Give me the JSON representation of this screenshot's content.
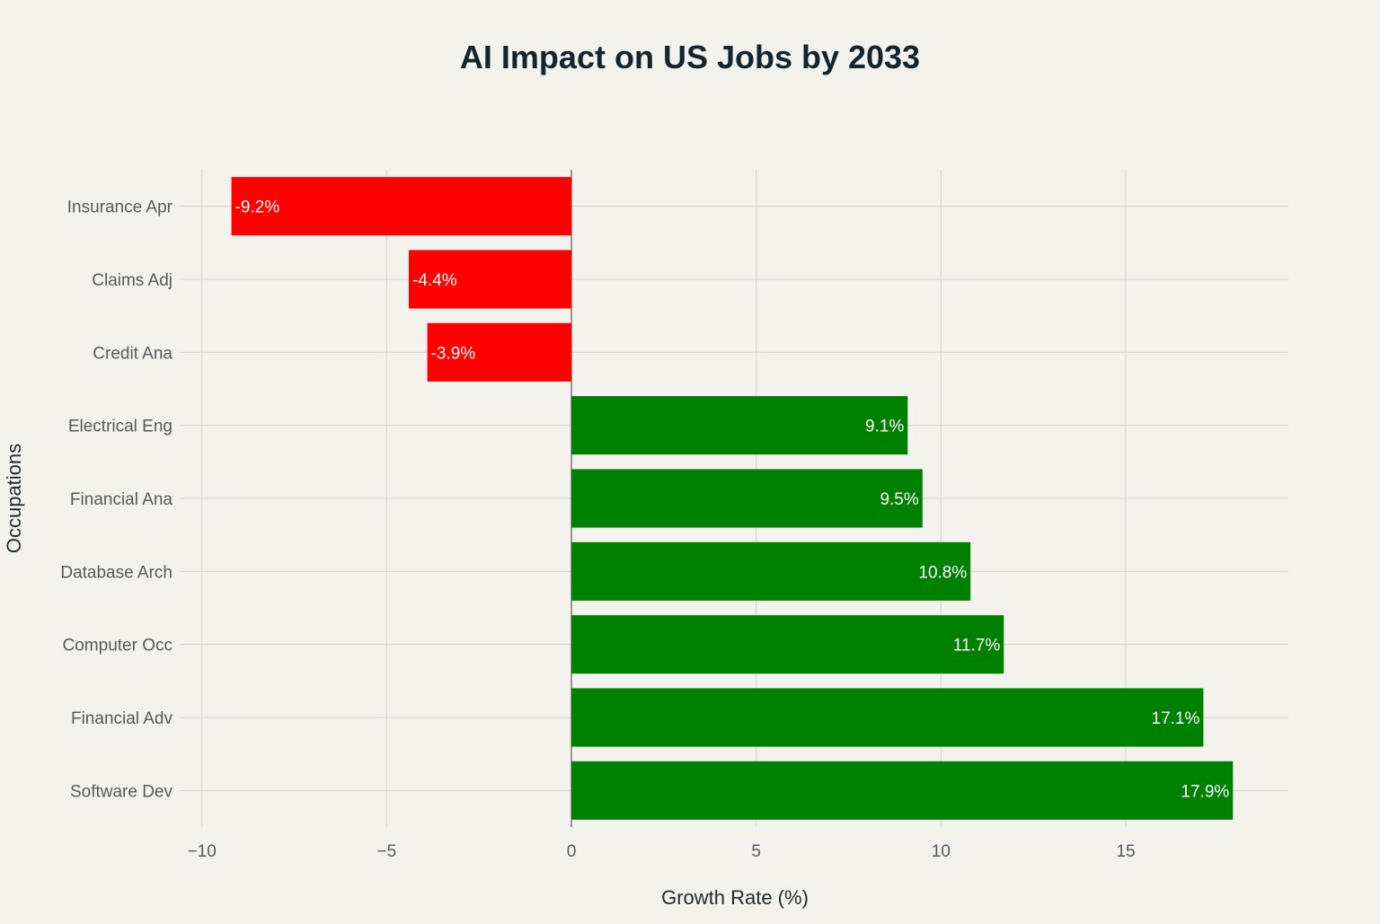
{
  "chart_data": {
    "type": "bar",
    "orientation": "horizontal",
    "title": "AI Impact on US Jobs by 2033",
    "xlabel": "Growth Rate (%)",
    "ylabel": "Occupations",
    "categories": [
      "Insurance Apr",
      "Claims Adj",
      "Credit Ana",
      "Electrical Eng",
      "Financial Ana",
      "Database Arch",
      "Computer Occ",
      "Financial Adv",
      "Software Dev"
    ],
    "values": [
      -9.2,
      -4.4,
      -3.9,
      9.1,
      9.5,
      10.8,
      11.7,
      17.1,
      17.9
    ],
    "data_labels": [
      "-9.2%",
      "-4.4%",
      "-3.9%",
      "9.1%",
      "9.5%",
      "10.8%",
      "11.7%",
      "17.1%",
      "17.9%"
    ],
    "xlim": [
      -10.6,
      19.4
    ],
    "x_ticks": [
      -10,
      -5,
      0,
      5,
      10,
      15
    ],
    "x_tick_labels": [
      "−10",
      "−5",
      "0",
      "5",
      "10",
      "15"
    ],
    "grid": true,
    "legend": "none",
    "colors": {
      "negative": "#ff0000",
      "positive": "#008000",
      "background": "#f3f2ed",
      "grid": "#d2d2cf"
    }
  }
}
